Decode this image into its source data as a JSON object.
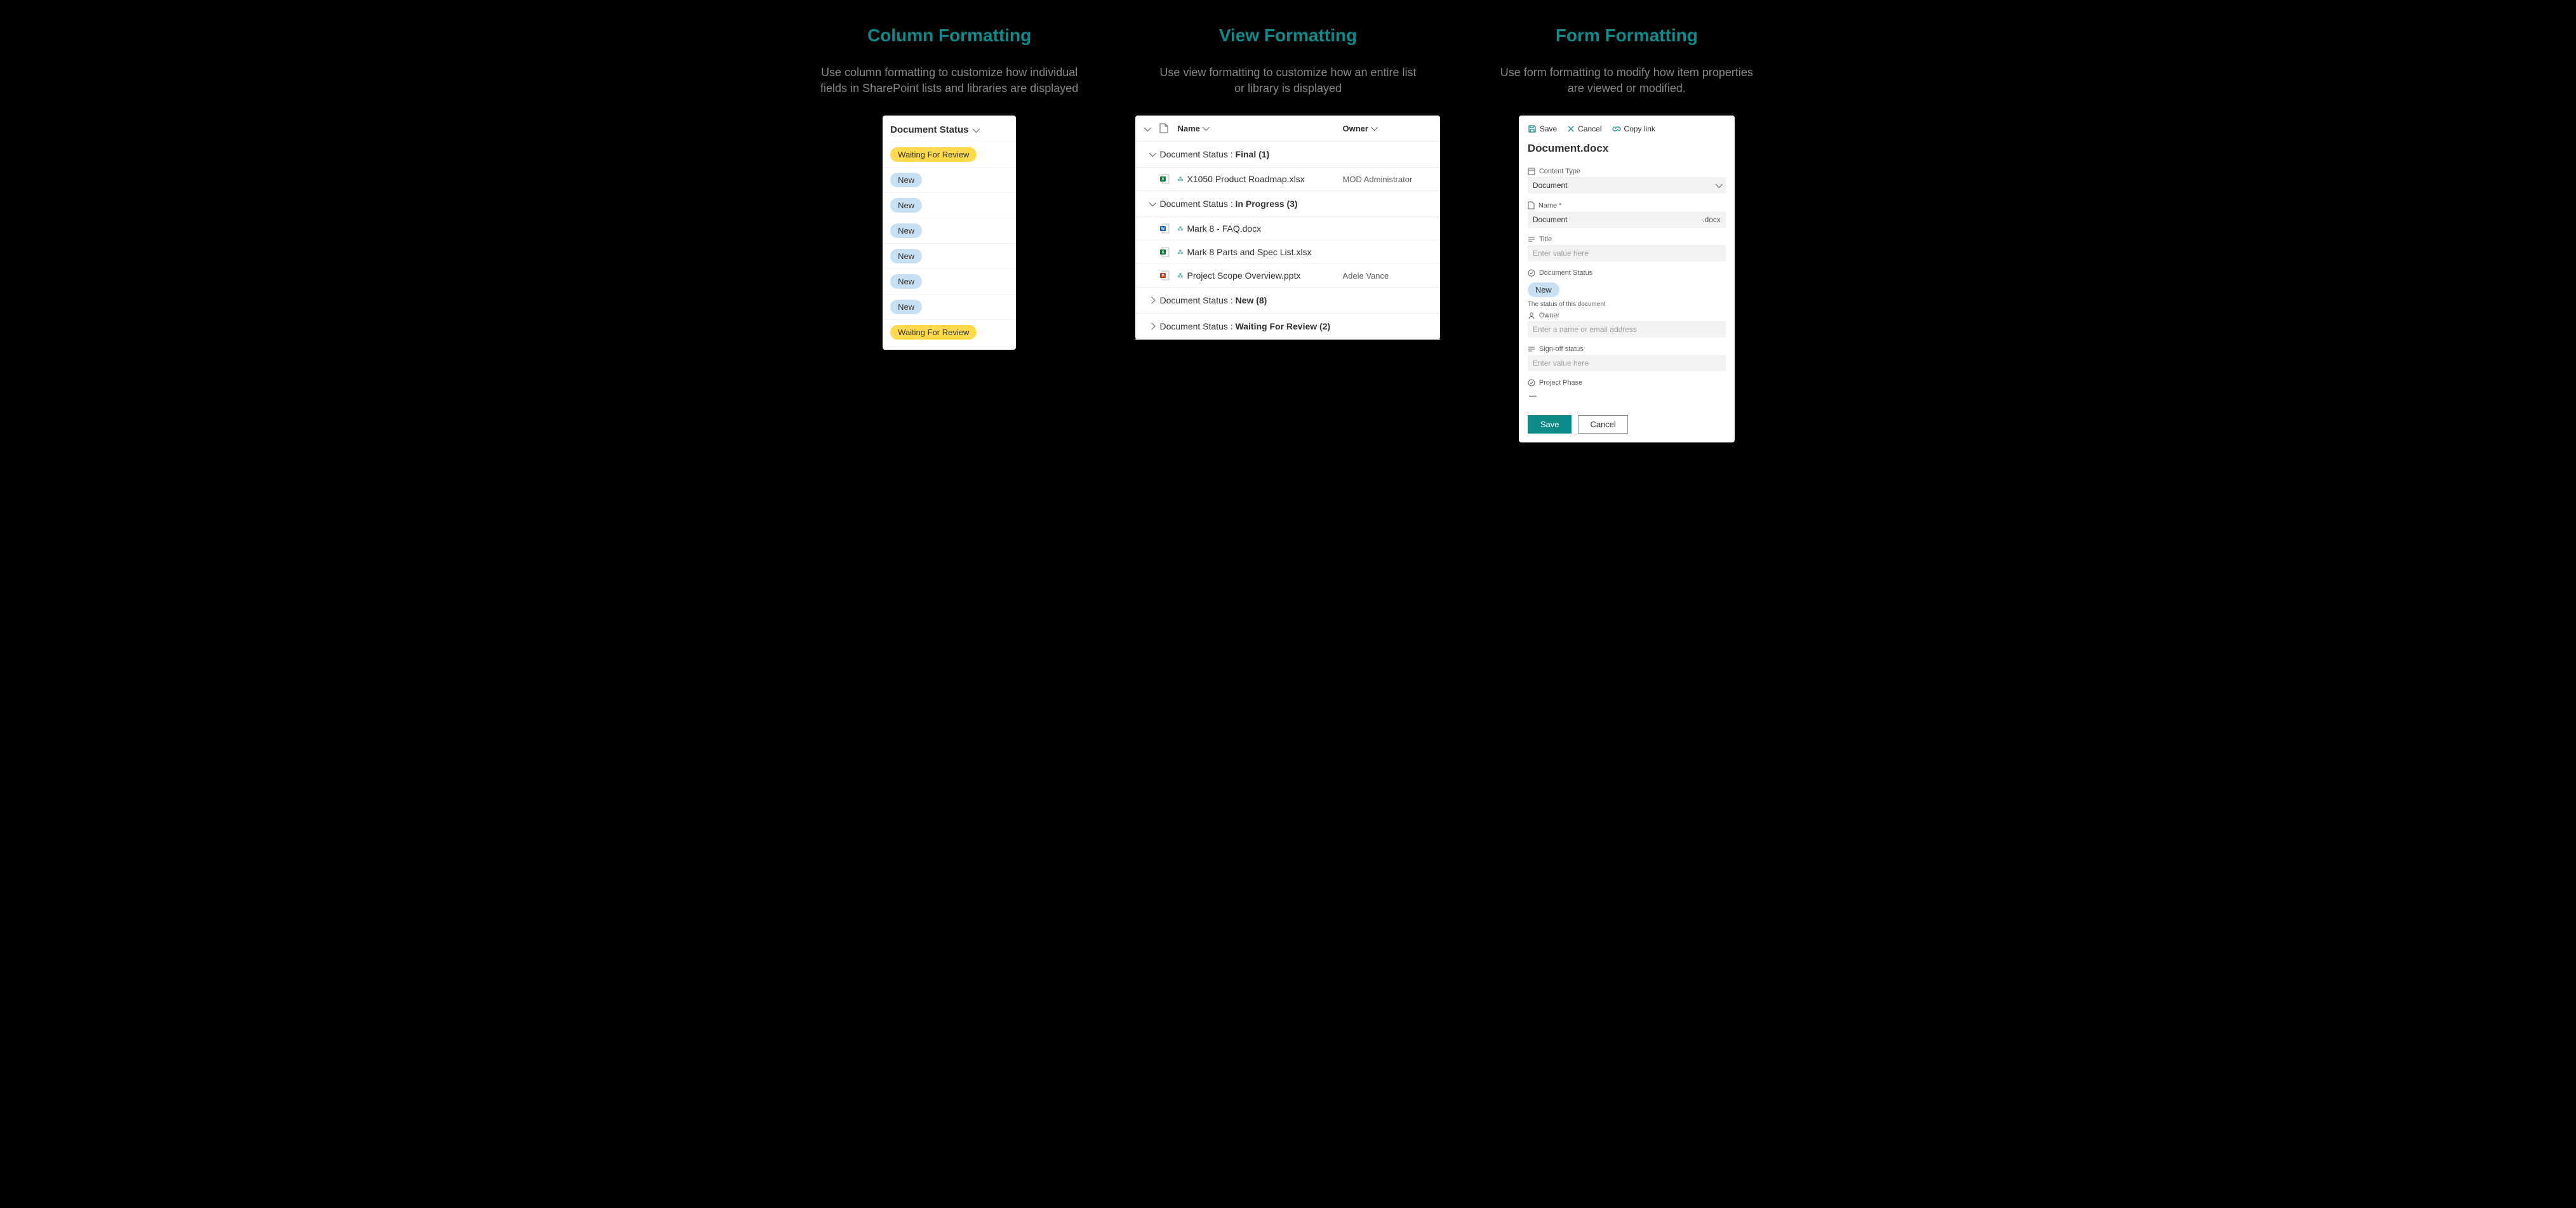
{
  "columns": {
    "colfmt": {
      "title": "Column Formatting",
      "desc": "Use column formatting to customize how individual fields in SharePoint lists and libraries are displayed",
      "header": "Document Status",
      "pills": [
        {
          "text": "Waiting For Review",
          "cls": "pill-yellow"
        },
        {
          "text": "New",
          "cls": "pill-blue"
        },
        {
          "text": "New",
          "cls": "pill-blue"
        },
        {
          "text": "New",
          "cls": "pill-blue"
        },
        {
          "text": "New",
          "cls": "pill-blue"
        },
        {
          "text": "New",
          "cls": "pill-blue"
        },
        {
          "text": "New",
          "cls": "pill-blue"
        },
        {
          "text": "Waiting For Review",
          "cls": "pill-yellow"
        }
      ]
    },
    "viewfmt": {
      "title": "View Formatting",
      "desc": "Use view formatting to customize how an entire list or library is displayed",
      "name_header": "Name",
      "owner_header": "Owner",
      "group_prefix": "Document Status : ",
      "groups": [
        {
          "label": "Final",
          "count": "(1)",
          "expanded": true,
          "items": [
            {
              "name": "X1050 Product Roadmap.xlsx",
              "type": "xlsx",
              "owner": "MOD Administrator"
            }
          ]
        },
        {
          "label": "In Progress",
          "count": "(3)",
          "expanded": true,
          "items": [
            {
              "name": "Mark 8 - FAQ.docx",
              "type": "docx",
              "owner": ""
            },
            {
              "name": "Mark 8 Parts and Spec List.xlsx",
              "type": "xlsx",
              "owner": ""
            },
            {
              "name": "Project Scope Overview.pptx",
              "type": "pptx",
              "owner": "Adele Vance"
            }
          ]
        },
        {
          "label": "New",
          "count": "(8)",
          "expanded": false,
          "items": []
        },
        {
          "label": "Waiting For Review",
          "count": "(2)",
          "expanded": false,
          "items": []
        }
      ]
    },
    "formfmt": {
      "title": "Form Formatting",
      "desc": "Use form formatting to modify how item properties are viewed or modified.",
      "toolbar": {
        "save": "Save",
        "cancel": "Cancel",
        "copylink": "Copy link"
      },
      "doc_title": "Document.docx",
      "fields": {
        "content_type": {
          "label": "Content Type",
          "value": "Document"
        },
        "name": {
          "label": "Name *",
          "value": "Document",
          "suffix": ".docx"
        },
        "title": {
          "label": "Title",
          "placeholder": "Enter value here"
        },
        "status": {
          "label": "Document Status",
          "value": "New",
          "hint": "The status of this document"
        },
        "owner": {
          "label": "Owner",
          "placeholder": "Enter a name or email address"
        },
        "signoff": {
          "label": "Sign-off status",
          "placeholder": "Enter value here"
        },
        "phase": {
          "label": "Project Phase",
          "value": "—"
        }
      },
      "buttons": {
        "save": "Save",
        "cancel": "Cancel"
      }
    }
  },
  "colors": {
    "teal": "#0d8a8a",
    "pill_yellow": "#ffd94d",
    "pill_blue": "#c7e0f4"
  }
}
